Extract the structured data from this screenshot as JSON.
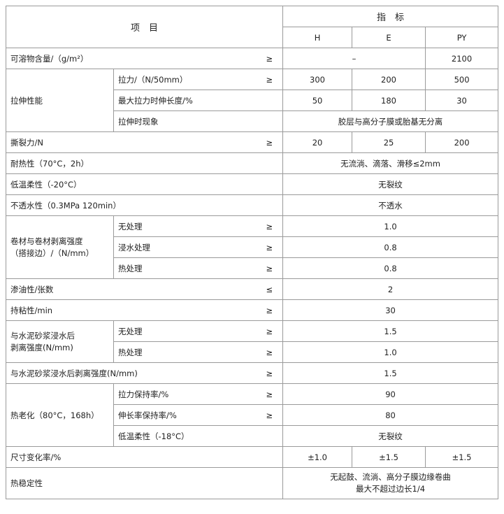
{
  "header": {
    "item": "项　目",
    "index": "指　标",
    "types": [
      "H",
      "E",
      "PY"
    ]
  },
  "rows": {
    "soluble": {
      "label": "可溶物含量/（g/m²）",
      "sym": "≥",
      "he": "–",
      "py": "2100"
    },
    "tensile": {
      "label": "拉伸性能",
      "force": {
        "label": "拉力/（N/50mm）",
        "sym": "≥",
        "h": "300",
        "e": "200",
        "py": "500"
      },
      "elong": {
        "label": "最大拉力时伸长度/%",
        "h": "50",
        "e": "180",
        "py": "30"
      },
      "phen": {
        "label": "拉伸时现象",
        "value": "胶层与高分子膜或胎基无分离"
      }
    },
    "tear": {
      "label": "撕裂力/N",
      "sym": "≥",
      "h": "20",
      "e": "25",
      "py": "200"
    },
    "heat": {
      "label": "耐热性（70°C，2h）",
      "value": "无流淌、滴落、滑移≤2mm"
    },
    "lowtemp": {
      "label": "低温柔性（-20°C）",
      "value": "无裂纹"
    },
    "water": {
      "label": "不透水性（0.3MPa 120min）",
      "value": "不透水"
    },
    "peel": {
      "label1": "卷材与卷材剥离强度",
      "label2": "（搭接边）/（N/mm）",
      "items": [
        {
          "label": "无处理",
          "sym": "≥",
          "value": "1.0"
        },
        {
          "label": "浸水处理",
          "sym": "≥",
          "value": "0.8"
        },
        {
          "label": "热处理",
          "sym": "≥",
          "value": "0.8"
        }
      ]
    },
    "oil": {
      "label": "渗油性/张数",
      "sym": "≤",
      "value": "2"
    },
    "hold": {
      "label": "持粘性/min",
      "sym": "≥",
      "value": "30"
    },
    "cement": {
      "label1": "与水泥砂浆浸水后",
      "label2": "剥离强度(N/mm)",
      "items": [
        {
          "label": "无处理",
          "sym": "≥",
          "value": "1.5"
        },
        {
          "label": "热处理",
          "sym": "≥",
          "value": "1.0"
        }
      ]
    },
    "cement2": {
      "label": "与水泥砂浆浸水后剥离强度(N/mm)",
      "sym": "≥",
      "value": "1.5"
    },
    "aging": {
      "label": "热老化（80°C，168h）",
      "items": [
        {
          "label": "拉力保持率/%",
          "sym": "≥",
          "value": "90"
        },
        {
          "label": "伸长率保持率/%",
          "sym": "≥",
          "value": "80"
        },
        {
          "label": "低温柔性（-18°C）",
          "sym": "",
          "value": "无裂纹"
        }
      ]
    },
    "dim": {
      "label": "尺寸变化率/%",
      "h": "±1.0",
      "e": "±1.5",
      "py": "±1.5"
    },
    "stab": {
      "label": "热稳定性",
      "value1": "无起鼓、流淌、高分子膜边缘卷曲",
      "value2": "最大不超过边长1/4"
    }
  }
}
